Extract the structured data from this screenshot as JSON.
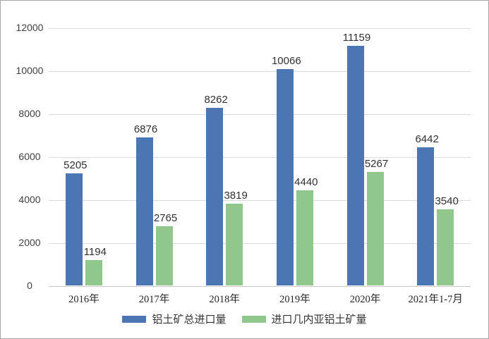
{
  "chart_data": {
    "type": "bar",
    "title": "",
    "xlabel": "",
    "ylabel": "",
    "categories": [
      "2016年",
      "2017年",
      "2018年",
      "2019年",
      "2020年",
      "2021年1-7月"
    ],
    "series": [
      {
        "name": "铝土矿总进口量",
        "color": "#4B76B3",
        "values": [
          5205,
          6876,
          8262,
          10066,
          11159,
          6442
        ]
      },
      {
        "name": "进口几内亚铝土矿量",
        "color": "#90C78D",
        "values": [
          1194,
          2765,
          3819,
          4440,
          5267,
          3540
        ]
      }
    ],
    "ylim": [
      0,
      12000
    ],
    "yticks": [
      0,
      2000,
      4000,
      6000,
      8000,
      10000,
      12000
    ],
    "grid": true,
    "data_labels": true,
    "legend_position": "bottom",
    "colors": {
      "gridline": "#DCDCDC",
      "axis_line": "#C9C9C9",
      "tick_label": "#404040",
      "data_label": "#303030",
      "category_label": "#262626",
      "frame_border": "#A6A6A6",
      "background": "#FFFFFF"
    }
  }
}
